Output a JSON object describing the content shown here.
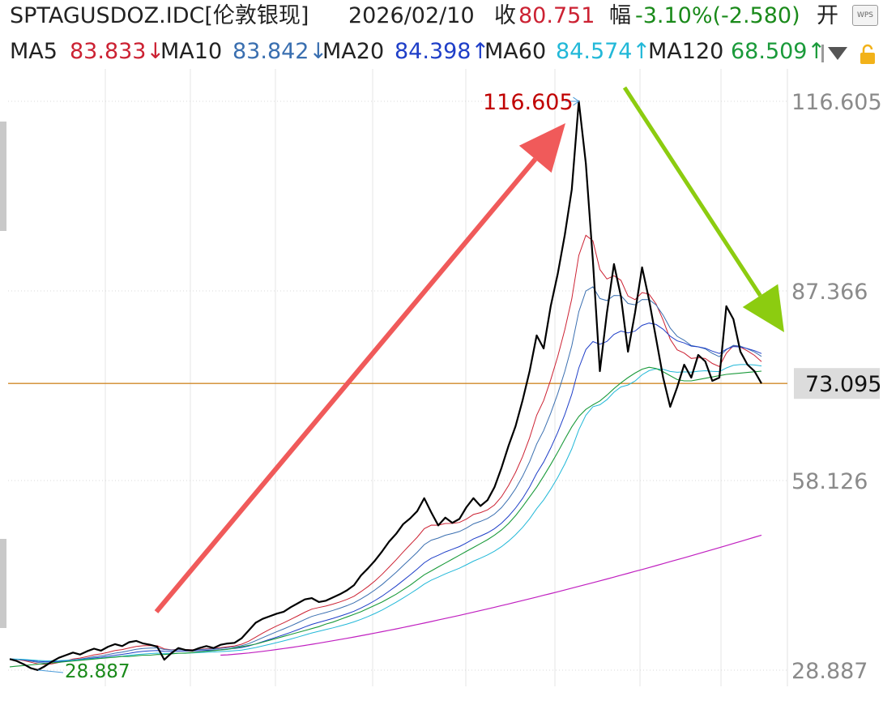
{
  "header": {
    "symbol": "SPTAGUSDOZ.IDC[伦敦银现]",
    "date": "2026/02/10",
    "close_label": "收",
    "close_value": "80.751",
    "range_label": "幅",
    "range_value": "-3.10%(-2.580)",
    "open_label": "开"
  },
  "ma_bar": {
    "items": [
      {
        "label": "MA5",
        "value": "83.833↓",
        "color": "#cc2233"
      },
      {
        "label": "MA10",
        "value": "83.842↓",
        "color": "#3a6fb0"
      },
      {
        "label": "MA20",
        "value": "84.398↑",
        "color": "#1f3fc8"
      },
      {
        "label": "MA60",
        "value": "84.574↑",
        "color": "#22b8d8"
      },
      {
        "label": "MA120",
        "value": "68.509↑",
        "color": "#1a9a3a"
      }
    ]
  },
  "colors": {
    "up_arrow": "#f05a5a",
    "down_arrow": "#8ccc10",
    "price_line": "#000000",
    "current_line": "#d08a2a",
    "ma120": "#1a9a3a",
    "long_ma": "#c020c0",
    "high_label": "#c00000",
    "low_label": "#1a8a1a"
  },
  "chart_data": {
    "type": "line",
    "y_ticks": [
      "116.605",
      "87.366",
      "58.126",
      "28.887"
    ],
    "ylim": [
      28.887,
      116.605
    ],
    "current_price": "73.095",
    "high_label": "116.605",
    "low_label": "28.887",
    "series": [
      {
        "name": "",
        "values": [
          30.6,
          30.3,
          29.8,
          29.2,
          28.9,
          29.5,
          30.2,
          30.8,
          31.2,
          31.6,
          31.3,
          31.8,
          32.2,
          31.9,
          32.5,
          32.9,
          32.6,
          33.2,
          33.4,
          33.0,
          32.8,
          32.5,
          30.5,
          31.5,
          32.3,
          32.0,
          31.9,
          32.3,
          32.6,
          32.3,
          32.8,
          33.0,
          33.1,
          33.8,
          35.0,
          36.2,
          36.8,
          37.2,
          37.6,
          37.9,
          38.6,
          39.2,
          39.8,
          40.0,
          39.4,
          39.6,
          40.1,
          40.6,
          41.2,
          42.0,
          43.5,
          44.6,
          45.8,
          47.2,
          48.7,
          49.9,
          51.4,
          52.3,
          53.4,
          55.4,
          53.2,
          51.2,
          52.4,
          51.6,
          52.2,
          54.0,
          55.4,
          54.2,
          55.1,
          57.1,
          60.1,
          63.5,
          66.5,
          70.5,
          75.0,
          80.5,
          78.5,
          85.0,
          90.0,
          96.0,
          103.0,
          116.6,
          107.0,
          92.0,
          75.0,
          84.0,
          91.5,
          86.5,
          78.0,
          84.0,
          91.0,
          86.0,
          80.0,
          74.0,
          69.5,
          72.5,
          76.0,
          74.0,
          77.5,
          76.5,
          73.5,
          74.0,
          85.0,
          83.0,
          78.0,
          76.0,
          75.0,
          73.1
        ]
      },
      {
        "name": "",
        "values": [
          29.4,
          29.5,
          29.6,
          29.7,
          29.8,
          29.9,
          30.0,
          30.1,
          30.2,
          30.3,
          30.4,
          30.5,
          30.6,
          30.7,
          30.8,
          30.9,
          31.0,
          31.0,
          31.1,
          31.2,
          31.2,
          31.3,
          31.3,
          31.4,
          31.5,
          31.5,
          31.6,
          31.7,
          31.8,
          31.9,
          32.0,
          32.1,
          32.3,
          32.5,
          32.7,
          32.9,
          33.2,
          33.5,
          33.8,
          34.1,
          34.4,
          34.7,
          35.0,
          35.3,
          35.6,
          36.0,
          36.3,
          36.7,
          37.1,
          37.5,
          37.9,
          38.4,
          38.9,
          39.4,
          40.0,
          40.6,
          41.3,
          42.0,
          42.8,
          43.6,
          44.2,
          44.8,
          45.4,
          46.0,
          46.6,
          47.2,
          47.8,
          48.4,
          49.0,
          49.7,
          50.5,
          51.5,
          52.7,
          54.1,
          55.6,
          57.1,
          58.8,
          60.6,
          62.5,
          64.5,
          66.4,
          68.0,
          69.1,
          69.8,
          70.4,
          71.3,
          72.3,
          73.2,
          74.0,
          74.7,
          75.3,
          75.6,
          75.4,
          74.9,
          74.3,
          73.7,
          73.5,
          73.5,
          73.7,
          73.9,
          74.1,
          74.3,
          74.5,
          74.6,
          74.7,
          74.8,
          74.9,
          75.0
        ]
      },
      {
        "name": "",
        "values": [
          null,
          null,
          null,
          null,
          null,
          null,
          null,
          null,
          null,
          null,
          null,
          null,
          null,
          null,
          null,
          null,
          null,
          null,
          null,
          null,
          null,
          null,
          null,
          null,
          null,
          null,
          null,
          null,
          null,
          null,
          null,
          null,
          null,
          null,
          null,
          null,
          null,
          null,
          null,
          null,
          null,
          null,
          null,
          null,
          null,
          null,
          null,
          null,
          null,
          null,
          null,
          null,
          null,
          null,
          null,
          null,
          null,
          null,
          null,
          null,
          null,
          null,
          null,
          null,
          null,
          null,
          null,
          null,
          null,
          null,
          null,
          null,
          null,
          null,
          null,
          null,
          null,
          null,
          null,
          null,
          null,
          null,
          null,
          null,
          null,
          null,
          null,
          null,
          null,
          null,
          null,
          null,
          null,
          null,
          null,
          null,
          null,
          null,
          null,
          null,
          null,
          null,
          null,
          null,
          null,
          null,
          null,
          null
        ]
      }
    ]
  }
}
